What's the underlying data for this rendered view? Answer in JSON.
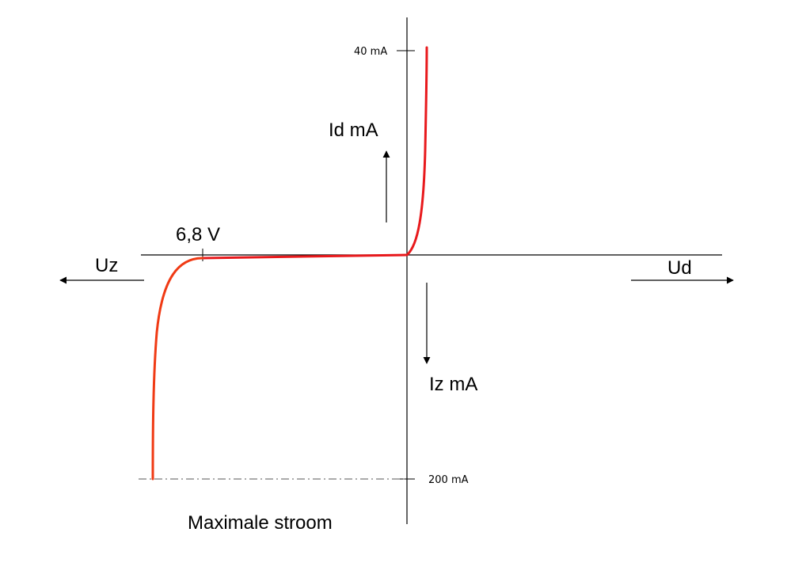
{
  "labels": {
    "id_axis": "Id mA",
    "iz_axis": "Iz mA",
    "ud_axis": "Ud",
    "uz_axis": "Uz",
    "zener_voltage": "6,8 V",
    "tick_top": "40 mA",
    "tick_bottom": "200 mA",
    "max_current": "Maximale stroom"
  },
  "colors": {
    "curve_forward": "#e8191c",
    "curve_zener": "#f03a14",
    "axes": "#000000",
    "dashed_limit": "#777777"
  }
}
